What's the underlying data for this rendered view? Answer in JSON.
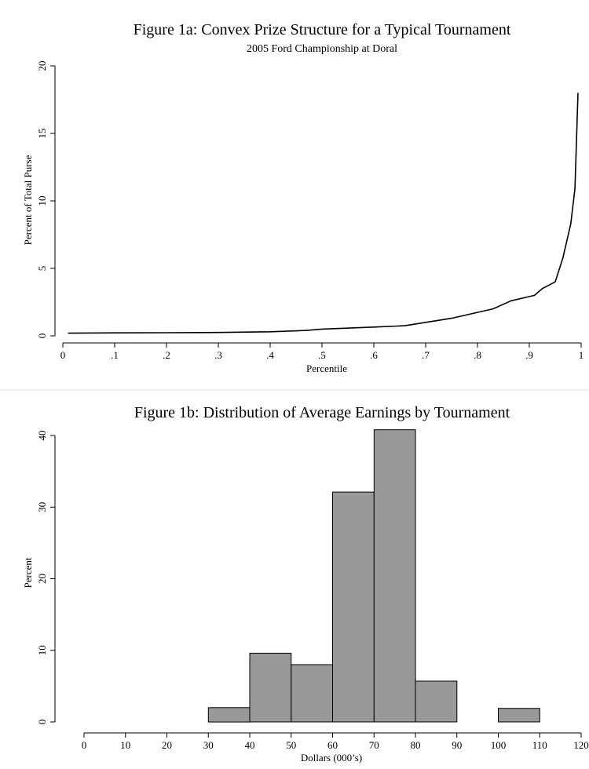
{
  "chart_data": [
    {
      "type": "line",
      "title": "Figure 1a: Convex Prize Structure for a Typical Tournament",
      "subtitle": "2005 Ford Championship at Doral",
      "xlabel": "Percentile",
      "ylabel": "Percent of Total Purse",
      "xlim": [
        0,
        1
      ],
      "ylim": [
        0,
        20
      ],
      "x_ticks": [
        0,
        0.1,
        0.2,
        0.3,
        0.4,
        0.5,
        0.6,
        0.7,
        0.8,
        0.9,
        1
      ],
      "x_tick_labels": [
        "0",
        ".1",
        ".2",
        ".3",
        ".4",
        ".5",
        ".6",
        ".7",
        ".8",
        ".9",
        "1"
      ],
      "y_ticks": [
        0,
        5,
        10,
        15,
        20
      ],
      "y_tick_labels": [
        "0",
        "5",
        "10",
        "15",
        "20"
      ],
      "grid": false,
      "series": [
        {
          "x": [
            0.01,
            0.1,
            0.2,
            0.3,
            0.4,
            0.47,
            0.5,
            0.6,
            0.66,
            0.75,
            0.83,
            0.865,
            0.91,
            0.925,
            0.95,
            0.965,
            0.98,
            0.988,
            0.994
          ],
          "y": [
            0.2,
            0.22,
            0.23,
            0.25,
            0.3,
            0.4,
            0.5,
            0.65,
            0.75,
            1.3,
            2.0,
            2.6,
            3.0,
            3.5,
            4.0,
            5.8,
            8.3,
            10.9,
            18.0
          ]
        }
      ]
    },
    {
      "type": "bar",
      "title": "Figure 1b: Distribution of Average Earnings by Tournament",
      "xlabel": "Dollars (000’s)",
      "ylabel": "Percent",
      "xlim": [
        -7,
        122
      ],
      "ylim": [
        0,
        40
      ],
      "x_ticks": [
        0,
        10,
        20,
        30,
        40,
        50,
        60,
        70,
        80,
        90,
        100,
        110,
        120
      ],
      "x_tick_labels": [
        "0",
        "10",
        "20",
        "30",
        "40",
        "50",
        "60",
        "70",
        "80",
        "90",
        "100",
        "110",
        "120"
      ],
      "y_ticks": [
        0,
        10,
        20,
        30,
        40
      ],
      "y_tick_labels": [
        "0",
        "10",
        "20",
        "30",
        "40"
      ],
      "grid": false,
      "bins": [
        {
          "start": 30,
          "end": 40,
          "value": 2.0
        },
        {
          "start": 40,
          "end": 50,
          "value": 9.6
        },
        {
          "start": 50,
          "end": 60,
          "value": 8.0
        },
        {
          "start": 60,
          "end": 70,
          "value": 32.1
        },
        {
          "start": 70,
          "end": 80,
          "value": 40.8
        },
        {
          "start": 80,
          "end": 90,
          "value": 5.7
        },
        {
          "start": 100,
          "end": 110,
          "value": 1.9
        }
      ],
      "bar_fill": "#999999",
      "bar_stroke": "#000000"
    }
  ]
}
